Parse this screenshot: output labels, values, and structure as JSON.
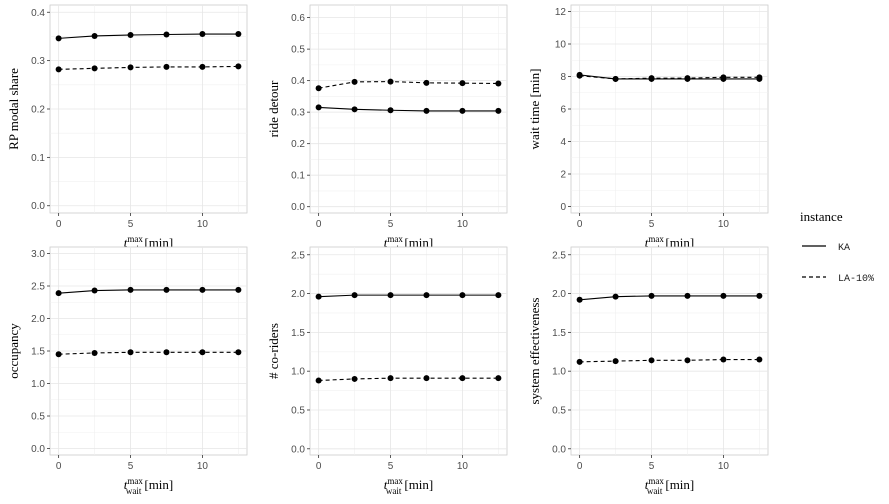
{
  "chart_data": [
    {
      "type": "line",
      "ylabel": "RP modal share",
      "ylim": [
        -0.015,
        0.415
      ],
      "yticks": [
        0.0,
        0.1,
        0.2,
        0.3,
        0.4
      ],
      "ytick_labels": [
        "0.0",
        "0.1",
        "0.2",
        "0.3",
        "0.4"
      ],
      "x": [
        0,
        2.5,
        5,
        7.5,
        10,
        12.5
      ],
      "series": [
        {
          "name": "KA",
          "values": [
            0.346,
            0.351,
            0.353,
            0.354,
            0.355,
            0.355
          ]
        },
        {
          "name": "LA-10%",
          "values": [
            0.282,
            0.284,
            0.286,
            0.287,
            0.287,
            0.288
          ]
        }
      ]
    },
    {
      "type": "line",
      "ylabel": "ride detour",
      "ylim": [
        -0.02,
        0.64
      ],
      "yticks": [
        0.0,
        0.1,
        0.2,
        0.3,
        0.4,
        0.5,
        0.6
      ],
      "ytick_labels": [
        "0.0",
        "0.1",
        "0.2",
        "0.3",
        "0.4",
        "0.5",
        "0.6"
      ],
      "x": [
        0,
        2.5,
        5,
        7.5,
        10,
        12.5
      ],
      "series": [
        {
          "name": "KA",
          "values": [
            0.315,
            0.309,
            0.306,
            0.304,
            0.304,
            0.304
          ]
        },
        {
          "name": "LA-10%",
          "values": [
            0.376,
            0.396,
            0.397,
            0.393,
            0.392,
            0.391
          ]
        }
      ]
    },
    {
      "type": "line",
      "ylabel": "wait time [min]",
      "ylim": [
        -0.4,
        12.4
      ],
      "yticks": [
        0,
        2,
        4,
        6,
        8,
        10,
        12
      ],
      "ytick_labels": [
        "0",
        "2",
        "4",
        "6",
        "8",
        "10",
        "12"
      ],
      "x": [
        0,
        2.5,
        5,
        7.5,
        10,
        12.5
      ],
      "series": [
        {
          "name": "KA",
          "values": [
            8.1,
            7.85,
            7.85,
            7.85,
            7.85,
            7.85
          ]
        },
        {
          "name": "LA-10%",
          "values": [
            8.05,
            7.85,
            7.9,
            7.9,
            7.95,
            7.95
          ]
        }
      ]
    },
    {
      "type": "line",
      "ylabel": "occupancy",
      "ylim": [
        -0.1,
        3.1
      ],
      "yticks": [
        0.0,
        0.5,
        1.0,
        1.5,
        2.0,
        2.5,
        3.0
      ],
      "ytick_labels": [
        "0.0",
        "0.5",
        "1.0",
        "1.5",
        "2.0",
        "2.5",
        "3.0"
      ],
      "x": [
        0,
        2.5,
        5,
        7.5,
        10,
        12.5
      ],
      "series": [
        {
          "name": "KA",
          "values": [
            2.39,
            2.43,
            2.44,
            2.44,
            2.44,
            2.44
          ]
        },
        {
          "name": "LA-10%",
          "values": [
            1.45,
            1.47,
            1.48,
            1.48,
            1.48,
            1.48
          ]
        }
      ]
    },
    {
      "type": "line",
      "ylabel": "# co-riders",
      "ylim": [
        -0.08,
        2.6
      ],
      "yticks": [
        0.0,
        0.5,
        1.0,
        1.5,
        2.0,
        2.5
      ],
      "ytick_labels": [
        "0.0",
        "0.5",
        "1.0",
        "1.5",
        "2.0",
        "2.5"
      ],
      "x": [
        0,
        2.5,
        5,
        7.5,
        10,
        12.5
      ],
      "series": [
        {
          "name": "KA",
          "values": [
            1.96,
            1.98,
            1.98,
            1.98,
            1.98,
            1.98
          ]
        },
        {
          "name": "LA-10%",
          "values": [
            0.88,
            0.9,
            0.91,
            0.91,
            0.91,
            0.91
          ]
        }
      ]
    },
    {
      "type": "line",
      "ylabel": "system effectiveness",
      "ylim": [
        -0.08,
        2.6
      ],
      "yticks": [
        0.0,
        0.5,
        1.0,
        1.5,
        2.0,
        2.5
      ],
      "ytick_labels": [
        "0.0",
        "0.5",
        "1.0",
        "1.5",
        "2.0",
        "2.5"
      ],
      "x": [
        0,
        2.5,
        5,
        7.5,
        10,
        12.5
      ],
      "series": [
        {
          "name": "KA",
          "values": [
            1.92,
            1.96,
            1.97,
            1.97,
            1.97,
            1.97
          ]
        },
        {
          "name": "LA-10%",
          "values": [
            1.12,
            1.13,
            1.14,
            1.14,
            1.15,
            1.15
          ]
        }
      ]
    }
  ],
  "shared": {
    "xlim": [
      -0.6,
      13.1
    ],
    "xticks": [
      0,
      5,
      10
    ],
    "xtick_labels": [
      "0",
      "5",
      "10"
    ],
    "xlabel_main": "t",
    "xlabel_sup": "max",
    "xlabel_sub": "wait",
    "xlabel_unit": "[min]",
    "grid": true,
    "series_styles": [
      {
        "name": "KA",
        "dash": "solid",
        "color": "#000000"
      },
      {
        "name": "LA-10%",
        "dash": "dashed",
        "color": "#000000"
      }
    ],
    "legend": {
      "placement": "right",
      "title": "instance",
      "entries": [
        "KA",
        "LA-10%"
      ]
    }
  }
}
